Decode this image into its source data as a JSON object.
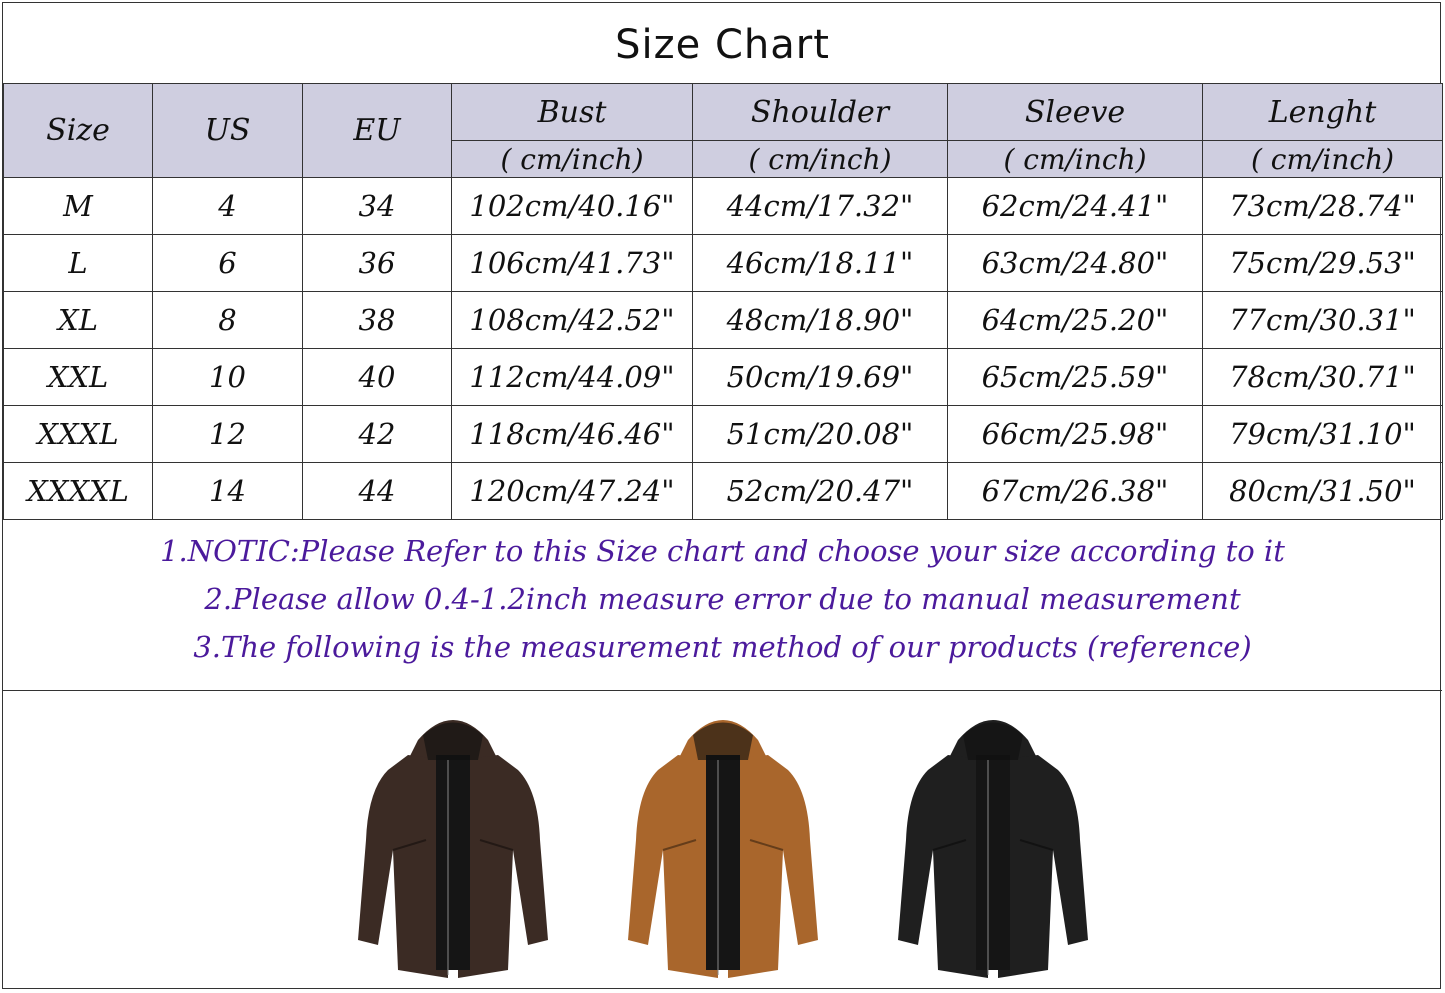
{
  "title": "Size Chart",
  "table": {
    "headers": [
      "Size",
      "US",
      "EU",
      "Bust",
      "Shoulder",
      "Sleeve",
      "Lenght"
    ],
    "unit": "( cm/inch)",
    "rows": [
      [
        "M",
        "4",
        "34",
        "102cm/40.16\"",
        "44cm/17.32\"",
        "62cm/24.41\"",
        "73cm/28.74\""
      ],
      [
        "L",
        "6",
        "36",
        "106cm/41.73\"",
        "46cm/18.11\"",
        "63cm/24.80\"",
        "75cm/29.53\""
      ],
      [
        "XL",
        "8",
        "38",
        "108cm/42.52\"",
        "48cm/18.90\"",
        "64cm/25.20\"",
        "77cm/30.31\""
      ],
      [
        "XXL",
        "10",
        "40",
        "112cm/44.09\"",
        "50cm/19.69\"",
        "65cm/25.59\"",
        "78cm/30.71\""
      ],
      [
        "XXXL",
        "12",
        "42",
        "118cm/46.46\"",
        "51cm/20.08\"",
        "66cm/25.98\"",
        "79cm/31.10\""
      ],
      [
        "XXXXL",
        "14",
        "44",
        "120cm/47.24\"",
        "52cm/20.47\"",
        "67cm/26.38\"",
        "80cm/31.50\""
      ]
    ]
  },
  "notes": [
    "1.NOTIC:Please Refer to this Size chart and choose your size according to it",
    "2.Please allow 0.4-1.2inch measure error due to manual measurement",
    "3.The following is the measurement method of our products (reference)"
  ],
  "colors": {
    "header_bg": "#cfcee0",
    "note_text": "#4b1a9c"
  },
  "products": [
    {
      "icon": "brown-leather-jacket-image",
      "color": "#3b2b24"
    },
    {
      "icon": "tan-leather-jacket-image",
      "color": "#a9662c"
    },
    {
      "icon": "black-leather-jacket-image",
      "color": "#1f1f1f"
    }
  ]
}
